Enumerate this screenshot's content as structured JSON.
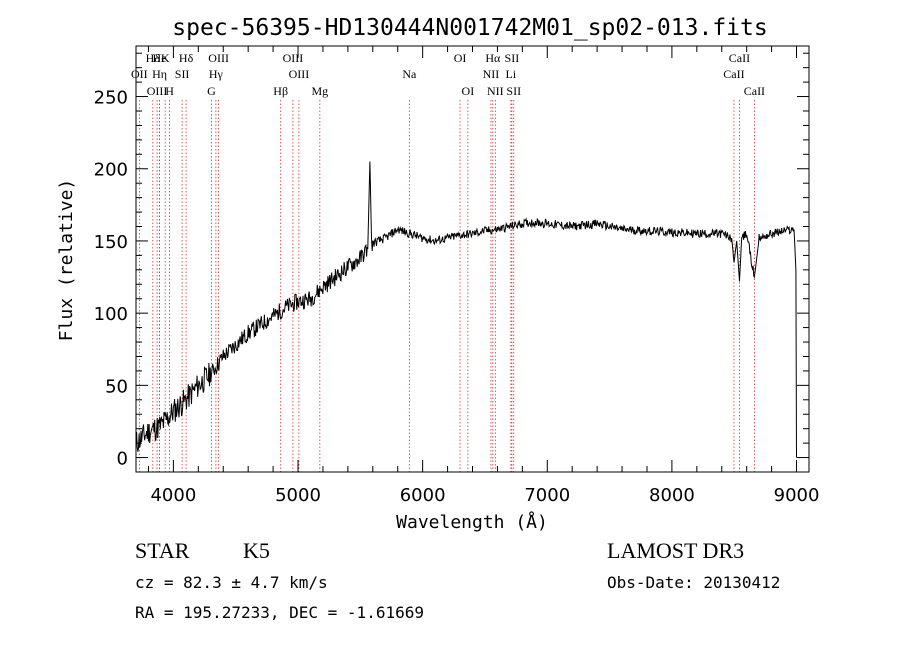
{
  "chart_data": {
    "type": "line",
    "title": "spec-56395-HD130444N001742M01_sp02-013.fits",
    "xlabel": "Wavelength (Å)",
    "ylabel": "Flux (relative)",
    "xlim": [
      3700,
      9100
    ],
    "ylim": [
      -10,
      285
    ],
    "xticks": [
      4000,
      5000,
      6000,
      7000,
      8000,
      9000
    ],
    "yticks": [
      0,
      50,
      100,
      150,
      200,
      250
    ],
    "tick_labels": {
      "x": [
        "4000",
        "5000",
        "6000",
        "7000",
        "8000",
        "9000"
      ],
      "y": [
        "0",
        "50",
        "100",
        "150",
        "200",
        "250"
      ]
    },
    "series": [
      {
        "name": "flux",
        "x": [
          3700,
          3800,
          3900,
          4000,
          4100,
          4200,
          4300,
          4400,
          4500,
          4600,
          4700,
          4800,
          4900,
          5000,
          5100,
          5200,
          5300,
          5400,
          5500,
          5560,
          5577,
          5590,
          5700,
          5800,
          5900,
          6000,
          6100,
          6200,
          6300,
          6400,
          6500,
          6600,
          6700,
          6800,
          6900,
          7000,
          7200,
          7400,
          7600,
          7800,
          8000,
          8200,
          8400,
          8480,
          8498,
          8520,
          8542,
          8560,
          8600,
          8662,
          8700,
          8800,
          8900,
          8980,
          8995,
          9000
        ],
        "y": [
          10,
          18,
          22,
          32,
          40,
          50,
          58,
          70,
          78,
          86,
          92,
          98,
          104,
          108,
          110,
          118,
          125,
          132,
          138,
          145,
          205,
          148,
          152,
          158,
          155,
          152,
          150,
          152,
          154,
          155,
          157,
          158,
          160,
          162,
          163,
          162,
          160,
          162,
          158,
          157,
          156,
          155,
          155,
          152,
          135,
          150,
          122,
          152,
          155,
          125,
          152,
          155,
          157,
          158,
          130,
          0
        ]
      }
    ],
    "line_markers": [
      {
        "label": "Hδ",
        "wl": 3835
      },
      {
        "label": "OII",
        "wl": 3727
      },
      {
        "label": "OIII",
        "wl": 3869
      },
      {
        "label": "He",
        "wl": 3889
      },
      {
        "label": "Hη",
        "wl": 3889
      },
      {
        "label": "K",
        "wl": 3934
      },
      {
        "label": "H",
        "wl": 3969
      },
      {
        "label": "SII",
        "wl": 4070
      },
      {
        "label": "Hδ",
        "wl": 4102
      },
      {
        "label": "OIII",
        "wl": 4363
      },
      {
        "label": "Hγ",
        "wl": 4341
      },
      {
        "label": "G",
        "wl": 4305
      },
      {
        "label": "Hβ",
        "wl": 4861
      },
      {
        "label": "OIII",
        "wl": 4959
      },
      {
        "label": "OIII",
        "wl": 5007
      },
      {
        "label": "Mg",
        "wl": 5175
      },
      {
        "label": "Na",
        "wl": 5893
      },
      {
        "label": "OI",
        "wl": 6300
      },
      {
        "label": "OI",
        "wl": 6363
      },
      {
        "label": "Hα",
        "wl": 6563
      },
      {
        "label": "NII",
        "wl": 6548
      },
      {
        "label": "NII",
        "wl": 6583
      },
      {
        "label": "SII",
        "wl": 6716
      },
      {
        "label": "Li",
        "wl": 6708
      },
      {
        "label": "SII",
        "wl": 6731
      },
      {
        "label": "CaII",
        "wl": 8542
      },
      {
        "label": "CaII",
        "wl": 8498
      },
      {
        "label": "CaII",
        "wl": 8662
      }
    ]
  },
  "info": {
    "class": "STAR",
    "subclass": "K5",
    "survey": "LAMOST DR3",
    "cz": "cz = 82.3 ± 4.7 km/s",
    "obs_date": "Obs-Date: 20130412",
    "radec": "RA = 195.27233, DEC =  -1.61669"
  },
  "colors": {
    "axes": "#000000",
    "spectrum": "#000000",
    "marker": "#cc3333",
    "background": "#ffffff"
  }
}
